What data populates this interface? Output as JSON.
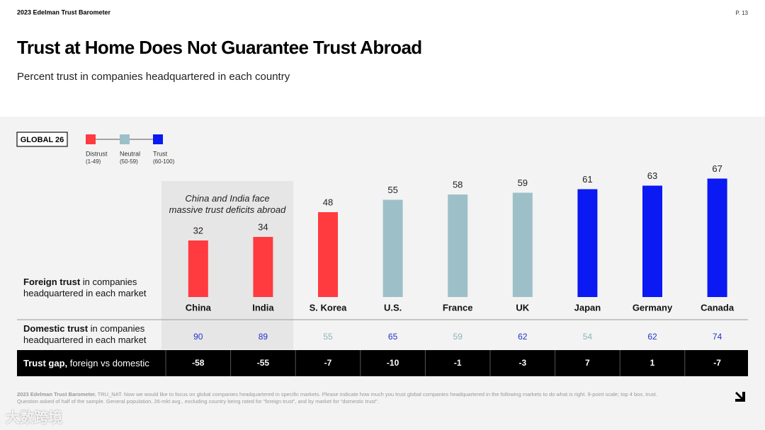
{
  "header": {
    "brand": "2023 Edelman Trust Barometer",
    "page": "P. 13",
    "title": "Trust at Home Does Not Guarantee Trust Abroad",
    "subtitle": "Percent trust in companies headquartered in each country"
  },
  "chart_data": {
    "type": "bar",
    "badge": "GLOBAL 26",
    "legend": [
      {
        "label": "Distrust",
        "range": "(1-49)",
        "color": "#ff3b3f"
      },
      {
        "label": "Neutral",
        "range": "(50-59)",
        "color": "#9dc0c8"
      },
      {
        "label": "Trust",
        "range": "(60-100)",
        "color": "#0b19f2"
      }
    ],
    "annotation": "China and India face massive trust deficits abroad",
    "row_label": {
      "bold": "Foreign trust",
      "rest": "in companies headquartered in each market"
    },
    "categories": [
      "China",
      "India",
      "S. Korea",
      "U.S.",
      "France",
      "UK",
      "Japan",
      "Germany",
      "Canada"
    ],
    "values": [
      32,
      34,
      48,
      55,
      58,
      59,
      61,
      63,
      67
    ],
    "colors": [
      "#ff3b3f",
      "#ff3b3f",
      "#ff3b3f",
      "#9dc0c8",
      "#9dc0c8",
      "#9dc0c8",
      "#0b19f2",
      "#0b19f2",
      "#0b19f2"
    ],
    "domestic": {
      "bold": "Domestic trust",
      "rest": "in companies headquartered in each market",
      "values": [
        90,
        89,
        55,
        65,
        59,
        62,
        54,
        62,
        74
      ],
      "colors": [
        "#2233cc",
        "#2233cc",
        "#8fb3bb",
        "#2233cc",
        "#8fb3bb",
        "#2233cc",
        "#8fb3bb",
        "#2233cc",
        "#2233cc"
      ]
    },
    "gap": {
      "bold": "Trust gap,",
      "rest": "foreign vs domestic",
      "values": [
        -58,
        -55,
        -7,
        -10,
        -1,
        -3,
        7,
        1,
        -7
      ]
    }
  },
  "footnote": {
    "bold": "2023 Edelman Trust Barometer.",
    "text": "TRU_NAT. Now we would like to focus on global companies headquartered in specific markets. Please indicate how much you trust global companies headquartered in the following markets to do what is right. 9-point scale; top 4 box, trust. Question asked of half of the sample. General population, 26-mkt avg., excluding country being rated for “foreign trust”, and by market for “domestic trust”."
  },
  "watermark": "大数跨境"
}
